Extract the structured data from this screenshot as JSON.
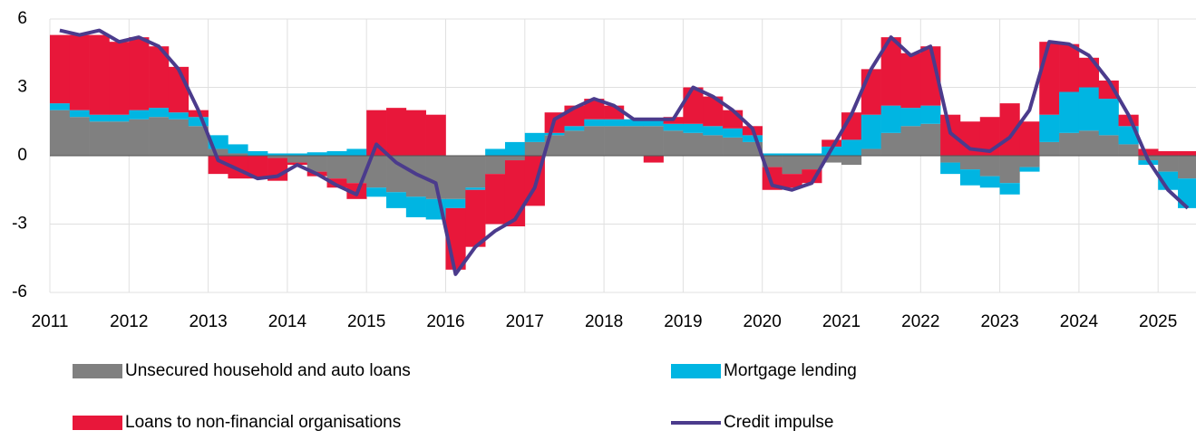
{
  "chart_data": {
    "type": "bar",
    "stacked": true,
    "categories": [
      "2011",
      null,
      null,
      null,
      "2012",
      null,
      null,
      null,
      "2013",
      null,
      null,
      null,
      "2014",
      null,
      null,
      null,
      "2015",
      null,
      null,
      null,
      "2016",
      null,
      null,
      null,
      "2017",
      null,
      null,
      null,
      "2018",
      null,
      null,
      null,
      "2019",
      null,
      null,
      null,
      "2020",
      null,
      null,
      null,
      "2021",
      null,
      null,
      null,
      "2022",
      null,
      null,
      null,
      "2023",
      null,
      null,
      null,
      "2024",
      null,
      null,
      null,
      "2025",
      null
    ],
    "series": [
      {
        "name": "Unsecured household and auto loans",
        "type": "bar",
        "color": "#808080",
        "values": [
          2.0,
          1.7,
          1.5,
          1.5,
          1.6,
          1.7,
          1.6,
          1.3,
          0.3,
          0.1,
          0,
          -0.1,
          -0.3,
          -0.7,
          -1.0,
          -1.2,
          -1.4,
          -1.6,
          -1.8,
          -1.9,
          -1.9,
          -1.4,
          -0.8,
          -0.2,
          0.6,
          0.9,
          1.1,
          1.3,
          1.3,
          1.3,
          1.3,
          1.1,
          1.0,
          0.9,
          0.8,
          0.6,
          -0.5,
          -0.8,
          -0.6,
          -0.3,
          -0.4,
          0.3,
          1.0,
          1.3,
          1.4,
          -0.3,
          -0.6,
          -0.9,
          -1.2,
          -0.5,
          0.6,
          1.0,
          1.1,
          0.9,
          0.5,
          -0.2,
          -0.7,
          -1.0
        ]
      },
      {
        "name": "Mortgage lending",
        "type": "bar",
        "color": "#00b5e2",
        "values": [
          0.3,
          0.3,
          0.3,
          0.3,
          0.4,
          0.4,
          0.3,
          0.4,
          0.6,
          0.4,
          0.2,
          0.1,
          0.1,
          0.15,
          0.2,
          0.3,
          -0.4,
          -0.7,
          -0.9,
          -0.9,
          -0.4,
          -0.1,
          0.3,
          0.6,
          0.4,
          0.1,
          0.2,
          0.3,
          0.3,
          0.3,
          0.3,
          0.3,
          0.4,
          0.4,
          0.4,
          0.3,
          0.1,
          0.1,
          0.1,
          0.4,
          0.7,
          1.5,
          1.2,
          0.8,
          0.8,
          -0.5,
          -0.7,
          -0.5,
          -0.5,
          -0.2,
          1.2,
          1.8,
          1.9,
          1.6,
          0.8,
          -0.2,
          -0.8,
          -1.3
        ]
      },
      {
        "name": "Loans to non-financial organisations",
        "type": "bar",
        "color": "#e8173a",
        "values": [
          3.0,
          3.3,
          3.5,
          3.2,
          3.2,
          2.7,
          2.0,
          0.3,
          -0.8,
          -1.0,
          -1.0,
          -1.0,
          -0.1,
          -0.2,
          -0.4,
          -0.7,
          2.0,
          2.1,
          2.0,
          1.8,
          -2.7,
          -2.5,
          -2.2,
          -2.9,
          -2.2,
          0.9,
          0.9,
          0.9,
          0.6,
          0,
          -0.3,
          0.3,
          1.6,
          1.3,
          0.8,
          0.4,
          -1.0,
          -0.6,
          -0.6,
          0.3,
          1.2,
          2.0,
          3.0,
          2.4,
          2.6,
          1.8,
          1.5,
          1.7,
          2.3,
          1.5,
          3.2,
          2.1,
          1.3,
          0.8,
          0.5,
          0.3,
          0.2,
          0.2
        ]
      },
      {
        "name": "Credit impulse",
        "type": "line",
        "color": "#4b3b8c",
        "values": [
          5.5,
          5.3,
          5.5,
          5.0,
          5.2,
          4.8,
          3.8,
          2.0,
          -0.2,
          -0.6,
          -1.0,
          -0.9,
          -0.4,
          -0.8,
          -1.3,
          -1.7,
          0.5,
          -0.3,
          -0.8,
          -1.2,
          -5.2,
          -4.0,
          -3.3,
          -2.8,
          -1.4,
          1.6,
          2.1,
          2.5,
          2.2,
          1.6,
          1.6,
          1.6,
          3.0,
          2.6,
          2.0,
          1.2,
          -1.3,
          -1.5,
          -1.2,
          0.3,
          1.8,
          3.8,
          5.2,
          4.4,
          4.8,
          1.0,
          0.3,
          0.2,
          0.8,
          2.0,
          5.0,
          4.9,
          4.4,
          3.3,
          1.8,
          -0.2,
          -1.5,
          -2.3
        ]
      }
    ],
    "ylim": [
      -6,
      6
    ],
    "yticks": [
      6,
      3,
      0,
      -3,
      -6
    ],
    "grid": true,
    "legend": "bottom"
  }
}
